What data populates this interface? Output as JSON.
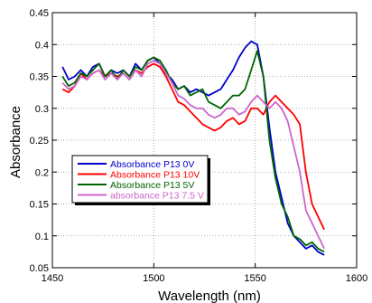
{
  "chart_data": {
    "type": "line",
    "xlabel": "Wavelength (nm)",
    "ylabel": "Absorbance",
    "xlim": [
      1450,
      1600
    ],
    "ylim": [
      0.05,
      0.45
    ],
    "xticks": [
      1450,
      1500,
      1550,
      1600
    ],
    "yticks": [
      0.05,
      0.1,
      0.15,
      0.2,
      0.25,
      0.3,
      0.35,
      0.4,
      0.45
    ],
    "ytick_labels": [
      "0.05",
      "0.1",
      "0.15",
      "0.2",
      "0.25",
      "0.3",
      "0.35",
      "0.4",
      "0.45"
    ],
    "grid": true,
    "legend_position": "lower-left",
    "series": [
      {
        "name": "Absorbance P13 0V",
        "color": "#0000cc",
        "x": [
          1455,
          1458,
          1461,
          1464,
          1467,
          1470,
          1473,
          1476,
          1479,
          1482,
          1485,
          1488,
          1491,
          1494,
          1497,
          1500,
          1503,
          1506,
          1509,
          1512,
          1515,
          1518,
          1521,
          1524,
          1527,
          1530,
          1533,
          1536,
          1539,
          1542,
          1545,
          1548,
          1551,
          1554,
          1557,
          1560,
          1563,
          1566,
          1569,
          1572,
          1575,
          1578,
          1581,
          1584
        ],
        "y": [
          0.365,
          0.345,
          0.35,
          0.36,
          0.35,
          0.365,
          0.37,
          0.35,
          0.36,
          0.355,
          0.36,
          0.35,
          0.37,
          0.36,
          0.375,
          0.38,
          0.37,
          0.355,
          0.345,
          0.33,
          0.335,
          0.325,
          0.33,
          0.325,
          0.32,
          0.325,
          0.33,
          0.345,
          0.36,
          0.38,
          0.395,
          0.405,
          0.4,
          0.35,
          0.27,
          0.2,
          0.16,
          0.12,
          0.1,
          0.09,
          0.08,
          0.085,
          0.075,
          0.07
        ]
      },
      {
        "name": "Absorbance P13 10V",
        "color": "#ff0000",
        "x": [
          1455,
          1458,
          1461,
          1464,
          1467,
          1470,
          1473,
          1476,
          1479,
          1482,
          1485,
          1488,
          1491,
          1494,
          1497,
          1500,
          1503,
          1506,
          1509,
          1512,
          1515,
          1518,
          1521,
          1524,
          1527,
          1530,
          1533,
          1536,
          1539,
          1542,
          1545,
          1548,
          1551,
          1554,
          1557,
          1560,
          1563,
          1566,
          1569,
          1572,
          1575,
          1578,
          1581,
          1584
        ],
        "y": [
          0.33,
          0.325,
          0.335,
          0.355,
          0.345,
          0.355,
          0.36,
          0.35,
          0.355,
          0.35,
          0.355,
          0.345,
          0.36,
          0.355,
          0.365,
          0.37,
          0.365,
          0.35,
          0.33,
          0.31,
          0.305,
          0.295,
          0.285,
          0.275,
          0.27,
          0.265,
          0.27,
          0.28,
          0.285,
          0.275,
          0.28,
          0.3,
          0.3,
          0.29,
          0.31,
          0.32,
          0.31,
          0.3,
          0.29,
          0.275,
          0.2,
          0.15,
          0.13,
          0.11
        ]
      },
      {
        "name": "Absorbance P13 5V",
        "color": "#006600",
        "x": [
          1455,
          1458,
          1461,
          1464,
          1467,
          1470,
          1473,
          1476,
          1479,
          1482,
          1485,
          1488,
          1491,
          1494,
          1497,
          1500,
          1503,
          1506,
          1509,
          1512,
          1515,
          1518,
          1521,
          1524,
          1527,
          1530,
          1533,
          1536,
          1539,
          1542,
          1545,
          1548,
          1551,
          1554,
          1557,
          1560,
          1563,
          1566,
          1569,
          1572,
          1575,
          1578,
          1581,
          1584
        ],
        "y": [
          0.35,
          0.335,
          0.34,
          0.355,
          0.35,
          0.36,
          0.37,
          0.35,
          0.36,
          0.345,
          0.36,
          0.35,
          0.365,
          0.36,
          0.375,
          0.38,
          0.375,
          0.36,
          0.34,
          0.33,
          0.335,
          0.32,
          0.325,
          0.33,
          0.31,
          0.305,
          0.3,
          0.31,
          0.32,
          0.32,
          0.33,
          0.36,
          0.39,
          0.35,
          0.25,
          0.19,
          0.15,
          0.13,
          0.1,
          0.095,
          0.085,
          0.09,
          0.08,
          0.075
        ]
      },
      {
        "name": "absorbance P13 7.5 V",
        "color": "#cc66cc",
        "x": [
          1455,
          1458,
          1461,
          1464,
          1467,
          1470,
          1473,
          1476,
          1479,
          1482,
          1485,
          1488,
          1491,
          1494,
          1497,
          1500,
          1503,
          1506,
          1509,
          1512,
          1515,
          1518,
          1521,
          1524,
          1527,
          1530,
          1533,
          1536,
          1539,
          1542,
          1545,
          1548,
          1551,
          1554,
          1557,
          1560,
          1563,
          1566,
          1569,
          1572,
          1575,
          1578,
          1581,
          1584
        ],
        "y": [
          0.34,
          0.33,
          0.335,
          0.35,
          0.345,
          0.355,
          0.36,
          0.345,
          0.355,
          0.345,
          0.355,
          0.345,
          0.36,
          0.35,
          0.37,
          0.375,
          0.37,
          0.355,
          0.34,
          0.32,
          0.315,
          0.305,
          0.3,
          0.3,
          0.29,
          0.285,
          0.29,
          0.3,
          0.3,
          0.29,
          0.295,
          0.31,
          0.32,
          0.31,
          0.3,
          0.31,
          0.3,
          0.28,
          0.24,
          0.2,
          0.14,
          0.12,
          0.1,
          0.08
        ]
      }
    ]
  }
}
